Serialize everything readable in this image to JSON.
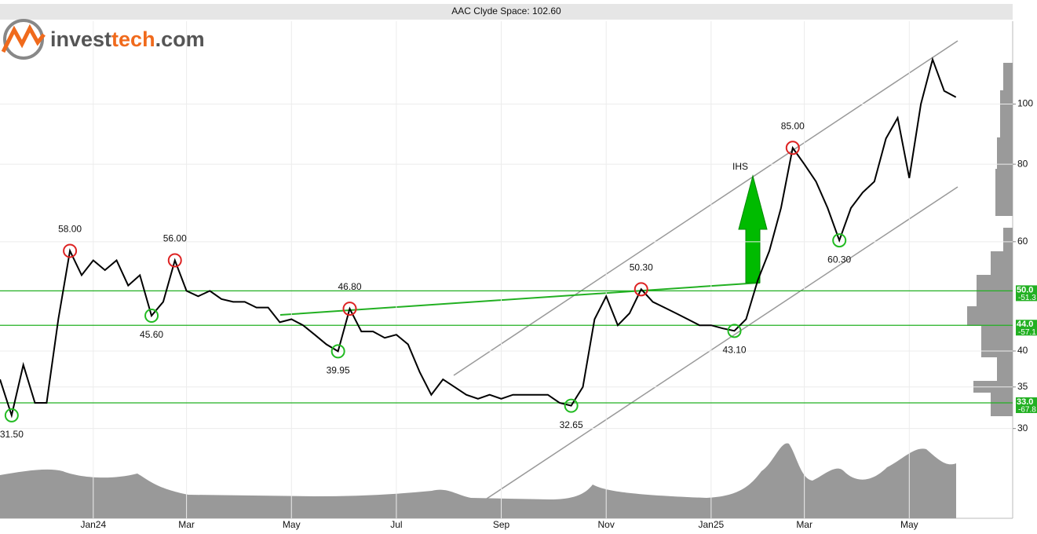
{
  "chart_data": {
    "type": "line",
    "title": "AAC Clyde Space: 102.60",
    "logo": [
      "invest",
      "tech",
      ".com"
    ],
    "pattern_label": "IHS",
    "log_scale": true,
    "grid": true,
    "color": "#000000",
    "ylim": [
      21.5,
      136
    ],
    "yticks": [
      30,
      35,
      40,
      60,
      80,
      100
    ],
    "categories": [
      null,
      null,
      null,
      null,
      null,
      null,
      null,
      null,
      "Jan24",
      null,
      null,
      null,
      null,
      null,
      null,
      null,
      "Mar",
      null,
      null,
      null,
      null,
      null,
      null,
      null,
      null,
      "May",
      null,
      null,
      null,
      null,
      null,
      null,
      null,
      null,
      "Jul",
      null,
      null,
      null,
      null,
      null,
      null,
      null,
      null,
      "Sep",
      null,
      null,
      null,
      null,
      null,
      null,
      null,
      null,
      "Nov",
      null,
      null,
      null,
      null,
      null,
      null,
      null,
      null,
      "Jan25",
      null,
      null,
      null,
      null,
      null,
      null,
      null,
      "Mar",
      null,
      null,
      null,
      null,
      null,
      null,
      null,
      null,
      "May",
      null,
      null,
      null,
      null
    ],
    "values": [
      36,
      31.5,
      38,
      33,
      33,
      45,
      58,
      53,
      56,
      54,
      56,
      51,
      53,
      45.6,
      48,
      56,
      50,
      49,
      50,
      48.5,
      48,
      48,
      47,
      47,
      44.5,
      45,
      44,
      42.5,
      41,
      39.95,
      46.8,
      43,
      43,
      42,
      42.5,
      41,
      37,
      34,
      36,
      35,
      34,
      33.5,
      34,
      33.5,
      34,
      34,
      34,
      34,
      33,
      32.65,
      35,
      45,
      49,
      44,
      46,
      50.3,
      48,
      47,
      46,
      45,
      44,
      44,
      43.5,
      43.1,
      45,
      52,
      58,
      68,
      85,
      80,
      75,
      68,
      60.3,
      68,
      72,
      75,
      88,
      95,
      76,
      100,
      118,
      105,
      102.6
    ],
    "value_labels": [
      null,
      "31.50",
      null,
      null,
      null,
      null,
      "58.00",
      null,
      null,
      null,
      null,
      null,
      null,
      "45.60",
      null,
      "56.00",
      null,
      null,
      null,
      null,
      null,
      null,
      null,
      null,
      null,
      null,
      null,
      null,
      null,
      "39.95",
      "46.80",
      null,
      null,
      null,
      null,
      null,
      null,
      null,
      null,
      null,
      null,
      null,
      null,
      null,
      null,
      null,
      null,
      null,
      null,
      "32.65",
      null,
      null,
      null,
      null,
      null,
      "50.30",
      null,
      null,
      null,
      null,
      null,
      null,
      null,
      "43.10",
      null,
      null,
      null,
      null,
      "85.00",
      null,
      null,
      null,
      "60.30",
      null,
      null,
      null,
      null,
      null,
      null,
      null,
      null,
      null,
      null
    ],
    "levels": [
      {
        "value": 50,
        "label": "50.0",
        "change": -51.3
      },
      {
        "value": 44,
        "label": "44.0",
        "change": -57.1
      },
      {
        "value": 33,
        "label": "33.0",
        "change": -67.8
      }
    ]
  }
}
